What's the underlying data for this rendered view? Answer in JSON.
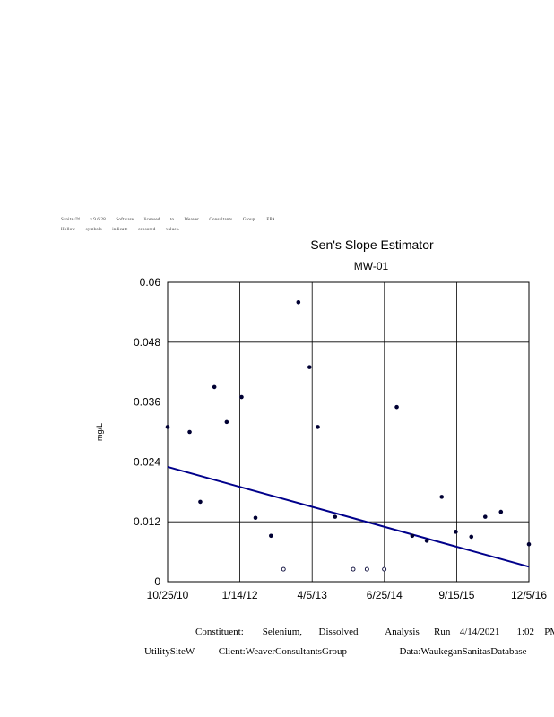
{
  "header": {
    "line1": [
      "Sanitas™",
      "v.9.6.28",
      "Software",
      "licensed",
      "to",
      "Weaver",
      "Consultants",
      "Group.",
      "EPA"
    ],
    "line2": [
      "Hollow",
      "symbols",
      "indicate",
      "censored",
      "values."
    ]
  },
  "chart_data": {
    "type": "scatter",
    "title": "Sen's Slope Estimator",
    "subtitle": "MW-01",
    "ylabel": "mg/L",
    "ylim": [
      0,
      0.06
    ],
    "yticks": [
      "0",
      "0.012",
      "0.024",
      "0.036",
      "0.048",
      "0.06"
    ],
    "xlim": [
      "2010-10-25",
      "2016-12-05"
    ],
    "xticks": [
      "10/25/10",
      "1/14/12",
      "4/5/13",
      "6/25/14",
      "9/15/15",
      "12/5/16"
    ],
    "grid": true,
    "colors": {
      "points": "#000033",
      "trend": "#00008b"
    },
    "series": [
      {
        "points": [
          {
            "x": "2010-10-25",
            "y": 0.031,
            "censored": false
          },
          {
            "x": "2011-03-10",
            "y": 0.03,
            "censored": false
          },
          {
            "x": "2011-05-15",
            "y": 0.016,
            "censored": false
          },
          {
            "x": "2011-08-10",
            "y": 0.039,
            "censored": false
          },
          {
            "x": "2011-10-25",
            "y": 0.032,
            "censored": false
          },
          {
            "x": "2012-01-25",
            "y": 0.037,
            "censored": false
          },
          {
            "x": "2012-04-20",
            "y": 0.0128,
            "censored": false
          },
          {
            "x": "2012-07-25",
            "y": 0.0092,
            "censored": false
          },
          {
            "x": "2012-10-10",
            "y": 0.0025,
            "censored": true
          },
          {
            "x": "2013-01-10",
            "y": 0.056,
            "censored": false
          },
          {
            "x": "2013-03-20",
            "y": 0.043,
            "censored": false
          },
          {
            "x": "2013-05-10",
            "y": 0.031,
            "censored": false
          },
          {
            "x": "2013-08-25",
            "y": 0.013,
            "censored": false
          },
          {
            "x": "2013-12-15",
            "y": 0.0025,
            "censored": true
          },
          {
            "x": "2014-03-10",
            "y": 0.0025,
            "censored": true
          },
          {
            "x": "2014-06-25",
            "y": 0.0025,
            "censored": true
          },
          {
            "x": "2014-09-10",
            "y": 0.035,
            "censored": false
          },
          {
            "x": "2014-12-15",
            "y": 0.0092,
            "censored": false
          },
          {
            "x": "2015-03-15",
            "y": 0.0082,
            "censored": false
          },
          {
            "x": "2015-06-15",
            "y": 0.017,
            "censored": false
          },
          {
            "x": "2015-09-10",
            "y": 0.01,
            "censored": false
          },
          {
            "x": "2015-12-15",
            "y": 0.009,
            "censored": false
          },
          {
            "x": "2016-03-10",
            "y": 0.013,
            "censored": false
          },
          {
            "x": "2016-06-15",
            "y": 0.014,
            "censored": false
          },
          {
            "x": "2016-12-05",
            "y": 0.0075,
            "censored": false
          }
        ]
      }
    ],
    "trend": {
      "start": {
        "x": "2010-10-25",
        "y": 0.023
      },
      "end": {
        "x": "2016-12-05",
        "y": 0.003
      }
    }
  },
  "footer": {
    "line1": [
      "Constituent:",
      "Selenium,",
      "Dissolved",
      "Analysis",
      "Run",
      "4/14/2021",
      "1:02",
      "PM"
    ],
    "line2": [
      "UtilitySiteW",
      "Client:WeaverConsultantsGroup",
      "Data:WaukeganSanitasDatabase"
    ]
  }
}
